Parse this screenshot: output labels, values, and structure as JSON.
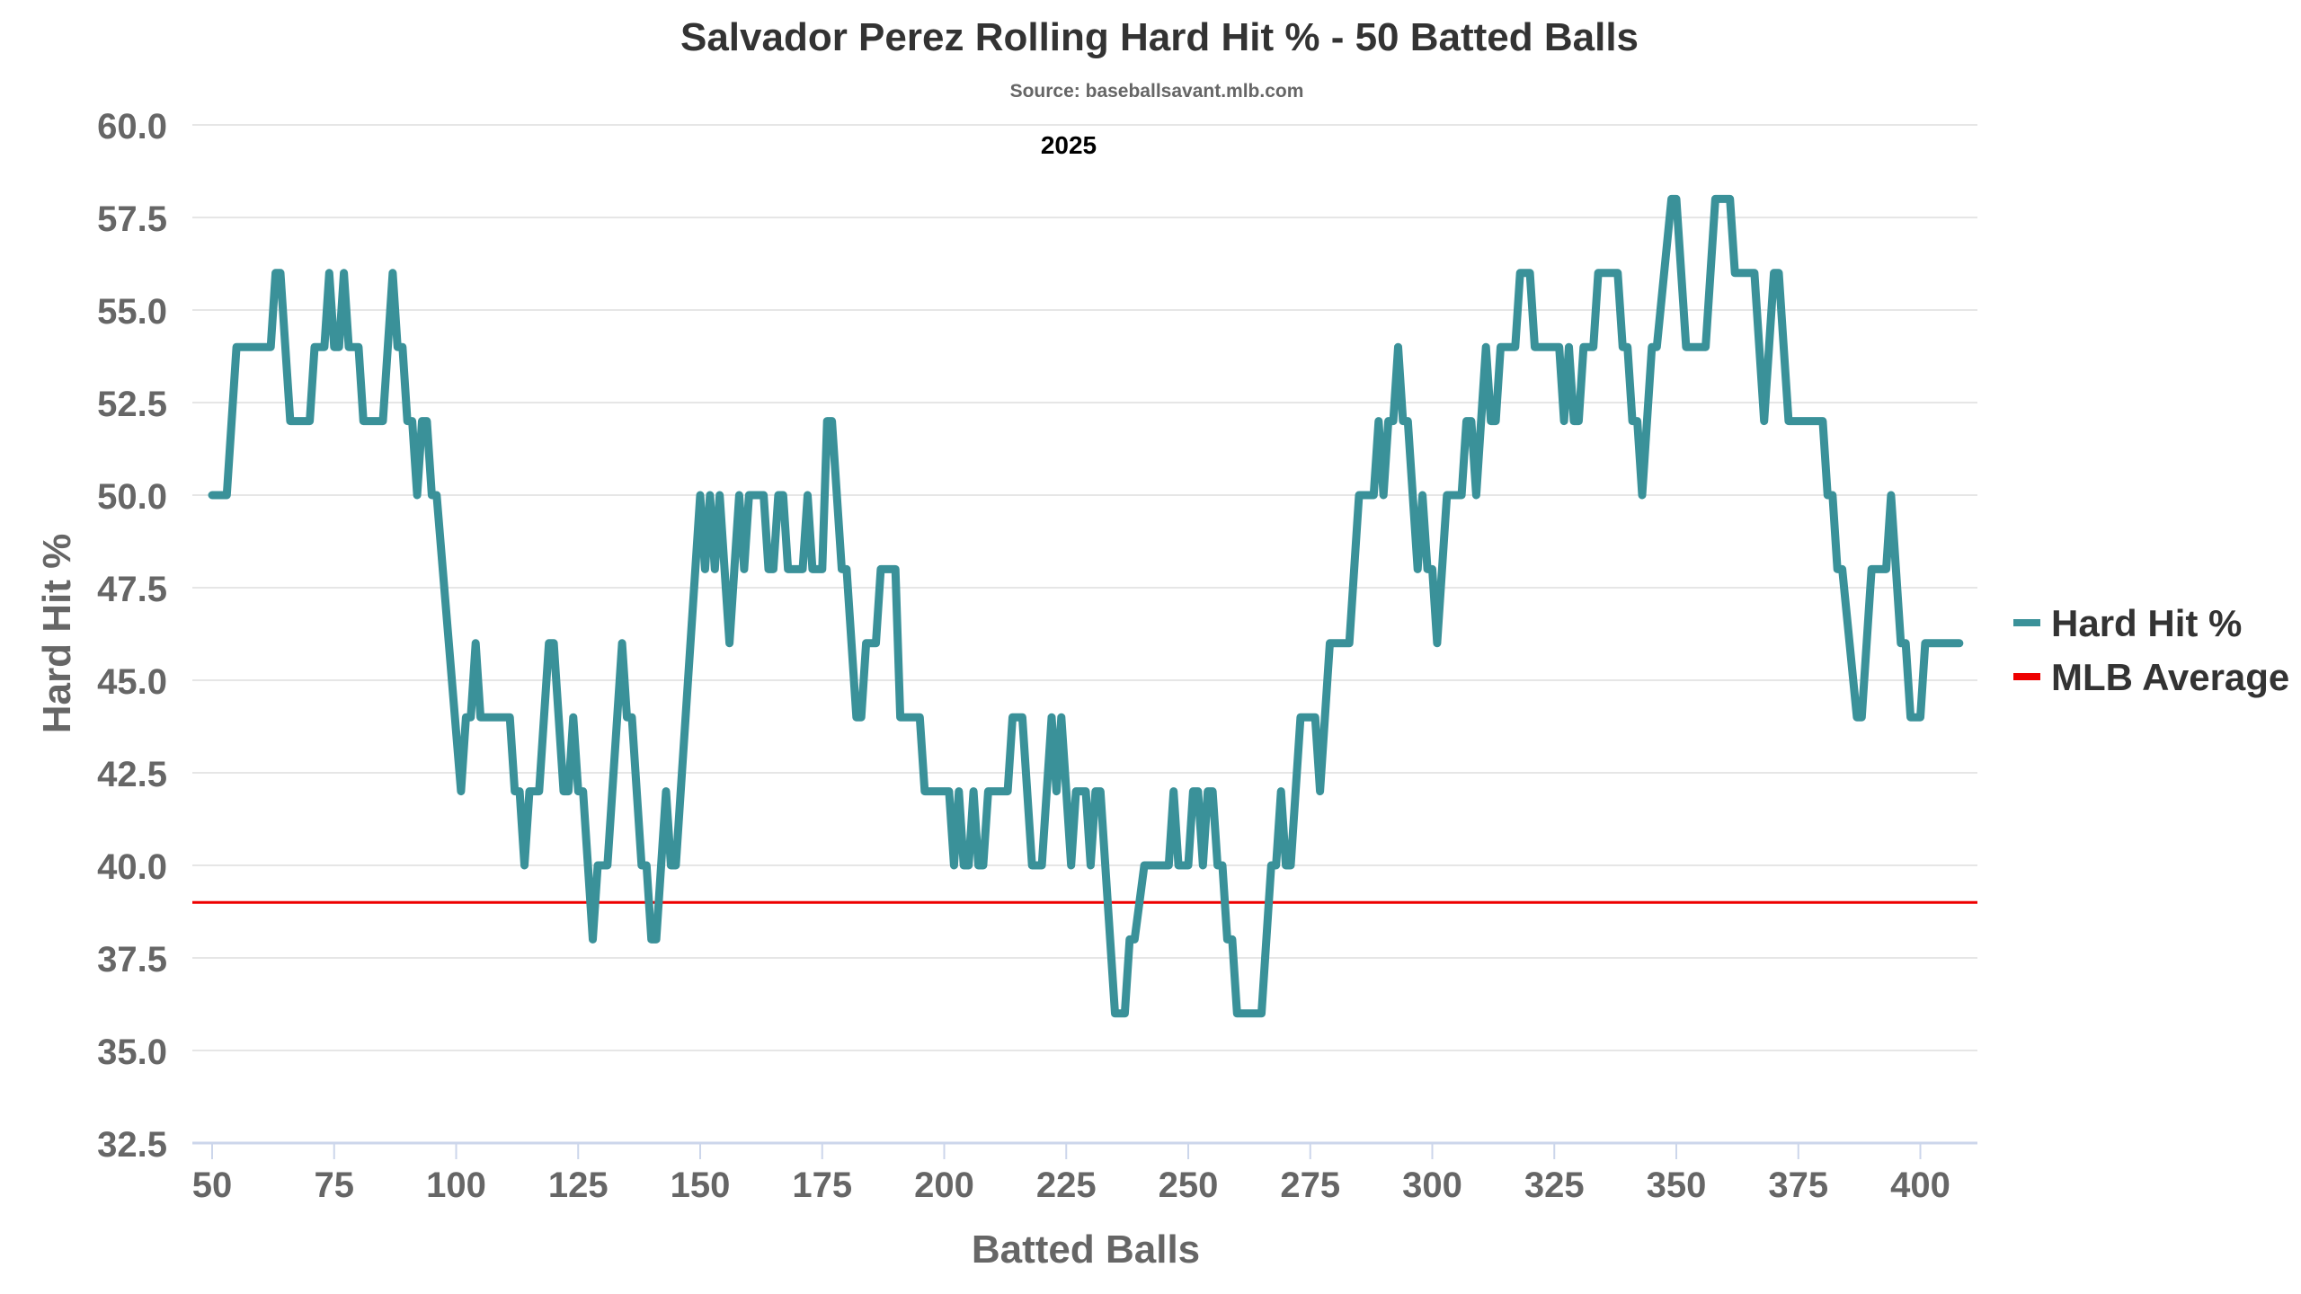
{
  "chart_data": {
    "type": "line",
    "title": "Salvador Perez Rolling Hard Hit % - 50 Batted Balls",
    "subtitle": "Source: baseballsavant.mlb.com",
    "annotation": "2025",
    "xlabel": "Batted Balls",
    "ylabel": "Hard Hit %",
    "xlim": [
      46,
      411
    ],
    "ylim": [
      32.5,
      60.0
    ],
    "x_ticks": [
      50,
      75,
      100,
      125,
      150,
      175,
      200,
      225,
      250,
      275,
      300,
      325,
      350,
      375,
      400
    ],
    "y_ticks": [
      "32.5",
      "35.0",
      "37.5",
      "40.0",
      "42.5",
      "45.0",
      "47.5",
      "50.0",
      "52.5",
      "55.0",
      "57.5",
      "60.0"
    ],
    "grid": true,
    "legend_position": "right",
    "series": [
      {
        "name": "Hard Hit %",
        "color": "#3a9199",
        "points": [
          [
            50,
            50
          ],
          [
            53,
            50
          ],
          [
            55,
            54
          ],
          [
            62,
            54
          ],
          [
            63,
            56
          ],
          [
            64,
            56
          ],
          [
            66,
            52
          ],
          [
            70,
            52
          ],
          [
            71,
            54
          ],
          [
            73,
            54
          ],
          [
            74,
            56
          ],
          [
            75,
            54
          ],
          [
            76,
            54
          ],
          [
            77,
            56
          ],
          [
            78,
            54
          ],
          [
            80,
            54
          ],
          [
            81,
            52
          ],
          [
            85,
            52
          ],
          [
            87,
            56
          ],
          [
            88,
            54
          ],
          [
            89,
            54
          ],
          [
            90,
            52
          ],
          [
            91,
            52
          ],
          [
            92,
            50
          ],
          [
            93,
            52
          ],
          [
            94,
            52
          ],
          [
            95,
            50
          ],
          [
            96,
            50
          ],
          [
            101,
            42
          ],
          [
            102,
            44
          ],
          [
            103,
            44
          ],
          [
            104,
            46
          ],
          [
            105,
            44
          ],
          [
            111,
            44
          ],
          [
            112,
            42
          ],
          [
            113,
            42
          ],
          [
            114,
            40
          ],
          [
            115,
            42
          ],
          [
            117,
            42
          ],
          [
            119,
            46
          ],
          [
            120,
            46
          ],
          [
            122,
            42
          ],
          [
            123,
            42
          ],
          [
            124,
            44
          ],
          [
            125,
            42
          ],
          [
            126,
            42
          ],
          [
            128,
            38
          ],
          [
            129,
            40
          ],
          [
            131,
            40
          ],
          [
            134,
            46
          ],
          [
            135,
            44
          ],
          [
            136,
            44
          ],
          [
            138,
            40
          ],
          [
            139,
            40
          ],
          [
            140,
            38
          ],
          [
            141,
            38
          ],
          [
            143,
            42
          ],
          [
            144,
            40
          ],
          [
            145,
            40
          ],
          [
            149,
            48
          ],
          [
            150,
            50
          ],
          [
            151,
            48
          ],
          [
            152,
            50
          ],
          [
            153,
            48
          ],
          [
            154,
            50
          ],
          [
            155,
            48
          ],
          [
            156,
            46
          ],
          [
            158,
            50
          ],
          [
            159,
            48
          ],
          [
            160,
            50
          ],
          [
            163,
            50
          ],
          [
            164,
            48
          ],
          [
            165,
            48
          ],
          [
            166,
            50
          ],
          [
            167,
            50
          ],
          [
            168,
            48
          ],
          [
            171,
            48
          ],
          [
            172,
            50
          ],
          [
            173,
            48
          ],
          [
            175,
            48
          ],
          [
            176,
            52
          ],
          [
            177,
            52
          ],
          [
            179,
            48
          ],
          [
            180,
            48
          ],
          [
            182,
            44
          ],
          [
            183,
            44
          ],
          [
            184,
            46
          ],
          [
            186,
            46
          ],
          [
            187,
            48
          ],
          [
            190,
            48
          ],
          [
            191,
            44
          ],
          [
            195,
            44
          ],
          [
            196,
            42
          ],
          [
            201,
            42
          ],
          [
            202,
            40
          ],
          [
            203,
            42
          ],
          [
            204,
            40
          ],
          [
            205,
            40
          ],
          [
            206,
            42
          ],
          [
            207,
            40
          ],
          [
            208,
            40
          ],
          [
            209,
            42
          ],
          [
            213,
            42
          ],
          [
            214,
            44
          ],
          [
            216,
            44
          ],
          [
            218,
            40
          ],
          [
            220,
            40
          ],
          [
            222,
            44
          ],
          [
            223,
            42
          ],
          [
            224,
            44
          ],
          [
            225,
            42
          ],
          [
            226,
            40
          ],
          [
            227,
            42
          ],
          [
            229,
            42
          ],
          [
            230,
            40
          ],
          [
            231,
            42
          ],
          [
            232,
            42
          ],
          [
            234,
            38
          ],
          [
            235,
            36
          ],
          [
            237,
            36
          ],
          [
            238,
            38
          ],
          [
            239,
            38
          ],
          [
            241,
            40
          ],
          [
            246,
            40
          ],
          [
            247,
            42
          ],
          [
            248,
            40
          ],
          [
            250,
            40
          ],
          [
            251,
            42
          ],
          [
            252,
            42
          ],
          [
            253,
            40
          ],
          [
            254,
            42
          ],
          [
            255,
            42
          ],
          [
            256,
            40
          ],
          [
            257,
            40
          ],
          [
            258,
            38
          ],
          [
            259,
            38
          ],
          [
            260,
            36
          ],
          [
            265,
            36
          ],
          [
            267,
            40
          ],
          [
            268,
            40
          ],
          [
            269,
            42
          ],
          [
            270,
            40
          ],
          [
            271,
            40
          ],
          [
            273,
            44
          ],
          [
            276,
            44
          ],
          [
            277,
            42
          ],
          [
            279,
            46
          ],
          [
            283,
            46
          ],
          [
            285,
            50
          ],
          [
            288,
            50
          ],
          [
            289,
            52
          ],
          [
            290,
            50
          ],
          [
            291,
            52
          ],
          [
            292,
            52
          ],
          [
            293,
            54
          ],
          [
            294,
            52
          ],
          [
            295,
            52
          ],
          [
            297,
            48
          ],
          [
            298,
            50
          ],
          [
            299,
            48
          ],
          [
            300,
            48
          ],
          [
            301,
            46
          ],
          [
            303,
            50
          ],
          [
            306,
            50
          ],
          [
            307,
            52
          ],
          [
            308,
            52
          ],
          [
            309,
            50
          ],
          [
            311,
            54
          ],
          [
            312,
            52
          ],
          [
            313,
            52
          ],
          [
            314,
            54
          ],
          [
            317,
            54
          ],
          [
            318,
            56
          ],
          [
            320,
            56
          ],
          [
            321,
            54
          ],
          [
            326,
            54
          ],
          [
            327,
            52
          ],
          [
            328,
            54
          ],
          [
            329,
            52
          ],
          [
            330,
            52
          ],
          [
            331,
            54
          ],
          [
            333,
            54
          ],
          [
            334,
            56
          ],
          [
            338,
            56
          ],
          [
            339,
            54
          ],
          [
            340,
            54
          ],
          [
            341,
            52
          ],
          [
            342,
            52
          ],
          [
            343,
            50
          ],
          [
            345,
            54
          ],
          [
            346,
            54
          ],
          [
            349,
            58
          ],
          [
            350,
            58
          ],
          [
            352,
            54
          ],
          [
            356,
            54
          ],
          [
            358,
            58
          ],
          [
            361,
            58
          ],
          [
            362,
            56
          ],
          [
            366,
            56
          ],
          [
            368,
            52
          ],
          [
            370,
            56
          ],
          [
            371,
            56
          ],
          [
            373,
            52
          ],
          [
            380,
            52
          ],
          [
            381,
            50
          ],
          [
            382,
            50
          ],
          [
            383,
            48
          ],
          [
            384,
            48
          ],
          [
            387,
            44
          ],
          [
            388,
            44
          ],
          [
            390,
            48
          ],
          [
            393,
            48
          ],
          [
            394,
            50
          ],
          [
            396,
            46
          ],
          [
            397,
            46
          ],
          [
            398,
            44
          ],
          [
            400,
            44
          ],
          [
            401,
            46
          ],
          [
            408,
            46
          ]
        ]
      },
      {
        "name": "MLB Average",
        "color": "#ee0000",
        "value": 39.0
      }
    ]
  }
}
